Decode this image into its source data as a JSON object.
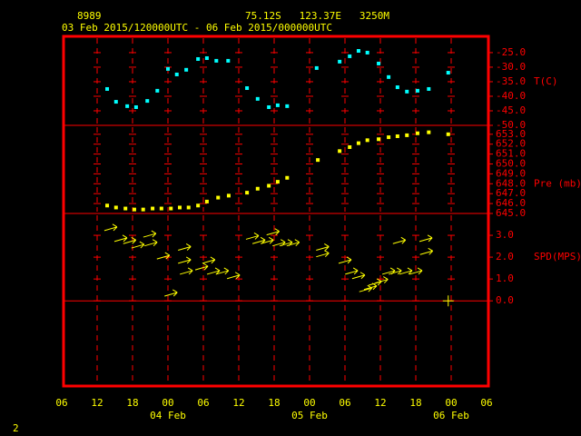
{
  "header": {
    "station": "8989",
    "location": "75.12S   123.37E   3250M",
    "period": "03 Feb 2015/120000UTC - 06 Feb 2015/000000UTC"
  },
  "footer": "2",
  "chart_data": [
    {
      "type": "scatter",
      "ylabel": "T(C)",
      "color": "#00ffff",
      "xlim": [
        0,
        72
      ],
      "ylim": [
        -50,
        -19.4
      ],
      "yticks": [
        {
          "value": -25,
          "label": "-25.0"
        },
        {
          "value": -30,
          "label": "-30.0"
        },
        {
          "value": -35,
          "label": "-35.0"
        },
        {
          "value": -40,
          "label": "-40.0"
        },
        {
          "value": -45,
          "label": "-45.0"
        },
        {
          "value": -50,
          "label": "-50.0"
        }
      ],
      "x": [
        7.7,
        9.2,
        11.1,
        12.6,
        14.5,
        16.2,
        18.0,
        19.5,
        21.1,
        23.1,
        24.6,
        26.2,
        28.2,
        31.4,
        33.2,
        35.1,
        36.6,
        38.2,
        43.2,
        47.1,
        48.8,
        50.3,
        51.8,
        53.7,
        55.4,
        56.9,
        58.5,
        60.3,
        62.2,
        65.5
      ],
      "values": [
        -37.5,
        -41.9,
        -43.4,
        -43.75,
        -41.6,
        -38.1,
        -30.6,
        -32.5,
        -30.9,
        -27.2,
        -26.9,
        -27.8,
        -27.8,
        -37.2,
        -40.9,
        -43.75,
        -43.1,
        -43.4,
        -30.3,
        -28.1,
        -26.25,
        -24.4,
        -25,
        -28.75,
        -33.4,
        -36.9,
        -38.4,
        -38.1,
        -37.5,
        -31.9
      ]
    },
    {
      "type": "scatter",
      "ylabel": "Pre (mb)",
      "color": "#ffff00",
      "xlim": [
        0,
        72
      ],
      "ylim": [
        645,
        653.9
      ],
      "yticks": [
        {
          "value": 653,
          "label": "653.0"
        },
        {
          "value": 652,
          "label": "652.0"
        },
        {
          "value": 651,
          "label": "651.0"
        },
        {
          "value": 650,
          "label": "650.0"
        },
        {
          "value": 649,
          "label": "649.0"
        },
        {
          "value": 648,
          "label": "648.0"
        },
        {
          "value": 647,
          "label": "647.0"
        },
        {
          "value": 646,
          "label": "646.0"
        },
        {
          "value": 645,
          "label": "645.0"
        }
      ],
      "x": [
        7.7,
        9.2,
        10.8,
        12.3,
        13.8,
        15.4,
        16.9,
        18.5,
        20,
        21.5,
        23.1,
        24.6,
        26.5,
        28.3,
        31.4,
        33.2,
        35.1,
        36.6,
        38.2,
        43.4,
        47.1,
        48.8,
        50.3,
        51.8,
        53.7,
        55.4,
        56.9,
        58.5,
        60.3,
        62.2,
        65.5
      ],
      "values": [
        645.8,
        645.6,
        645.5,
        645.4,
        645.4,
        645.5,
        645.5,
        645.5,
        645.6,
        645.6,
        645.8,
        646.2,
        646.6,
        646.8,
        647.1,
        647.5,
        647.8,
        648.2,
        648.6,
        650.4,
        651.3,
        651.7,
        652.1,
        652.4,
        652.5,
        652.7,
        652.8,
        652.9,
        653.1,
        653.2,
        653.0
      ]
    },
    {
      "type": "wind",
      "ylabel": "SPD(MPS)",
      "color": "#ffff00",
      "xlim": [
        0,
        72
      ],
      "ylim": [
        -3.9,
        4.0
      ],
      "yticks": [
        {
          "value": 3,
          "label": "3.0"
        },
        {
          "value": 2,
          "label": "2.0"
        },
        {
          "value": 1,
          "label": "1.0"
        },
        {
          "value": 0,
          "label": "0.0"
        }
      ],
      "xticks": [
        {
          "value": 0,
          "label": "06"
        },
        {
          "value": 6,
          "label": "12"
        },
        {
          "value": 12,
          "label": "18"
        },
        {
          "value": 18,
          "label": "00"
        },
        {
          "value": 24,
          "label": "06"
        },
        {
          "value": 30,
          "label": "12"
        },
        {
          "value": 36,
          "label": "18"
        },
        {
          "value": 42,
          "label": "00"
        },
        {
          "value": 48,
          "label": "06"
        },
        {
          "value": 54,
          "label": "12"
        },
        {
          "value": 60,
          "label": "18"
        },
        {
          "value": 66,
          "label": "00"
        },
        {
          "value": 72,
          "label": "06"
        }
      ],
      "date_labels": [
        {
          "value": 18,
          "label": "04 Feb"
        },
        {
          "value": 42,
          "label": "05 Feb"
        },
        {
          "value": 66,
          "label": "06 Feb"
        }
      ],
      "x": [
        8.3,
        10,
        11.5,
        12.9,
        14.9,
        15.1,
        17.2,
        18.5,
        20.8,
        20.8,
        21.1,
        23.7,
        24.9,
        25.7,
        27.2,
        29.1,
        32.3,
        33.4,
        34.8,
        35.8,
        36.8,
        38,
        39.2,
        44.2,
        44.2,
        48,
        49.1,
        50.3,
        51.5,
        52.3,
        53.1,
        54.2,
        55.4,
        56.5,
        57.2,
        58.3,
        60,
        61.7,
        61.8,
        65.5
      ],
      "values": [
        3.3,
        2.8,
        2.7,
        2.5,
        3.0,
        2.6,
        2.0,
        0.3,
        2.4,
        1.8,
        1.3,
        1.5,
        1.8,
        1.3,
        1.3,
        1.1,
        2.9,
        2.7,
        2.7,
        3.1,
        2.6,
        2.6,
        2.6,
        2.4,
        2.1,
        1.8,
        1.3,
        1.1,
        0.5,
        0.6,
        0.8,
        0.9,
        1.3,
        1.3,
        2.7,
        1.3,
        1.3,
        2.8,
        2.2,
        0
      ]
    }
  ]
}
